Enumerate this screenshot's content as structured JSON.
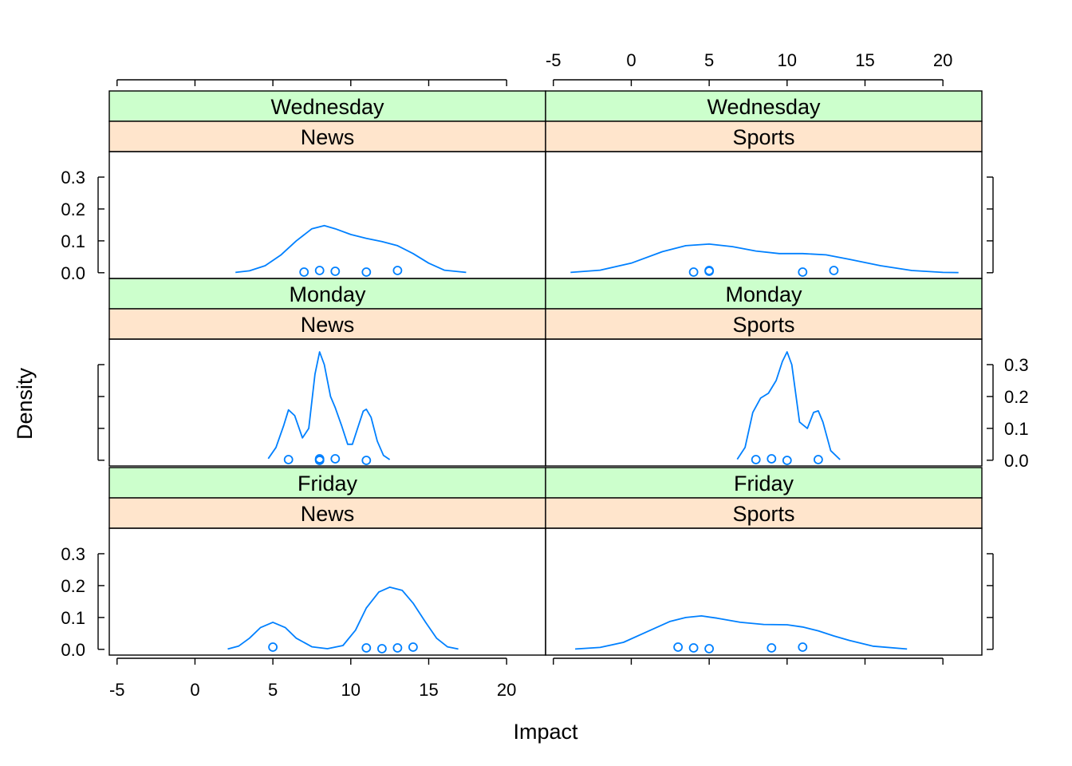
{
  "chart_data": {
    "type": "density",
    "layout": "lattice 2 columns x 3 rows, top row = Wednesday, middle = Monday, bottom = Friday",
    "xlabel": "Impact",
    "ylabel": "Density",
    "x_ticks": [
      -5,
      0,
      5,
      10,
      15,
      20
    ],
    "y_ticks": [
      0.0,
      0.1,
      0.2,
      0.3
    ],
    "y_tick_labels": [
      "0.0",
      "0.1",
      "0.2",
      "0.3"
    ],
    "xlim": [
      -5.5,
      22.5
    ],
    "ylim": [
      -0.018,
      0.38
    ],
    "colors": {
      "series": "#0080ff",
      "strip_outer": "#ccffcc",
      "strip_inner": "#ffe5cc",
      "frame": "#000000"
    },
    "panels": [
      {
        "row": 0,
        "col": 0,
        "strips": [
          "Wednesday",
          "News"
        ],
        "points": [
          7,
          8,
          9,
          11,
          13
        ],
        "curve_x": [
          2.6,
          3.5,
          4.5,
          5.5,
          6.5,
          7.5,
          8.3,
          9.0,
          10.0,
          11.0,
          12.0,
          13.0,
          14.0,
          15.0,
          16.0,
          17.4
        ],
        "curve_y": [
          0.001,
          0.006,
          0.022,
          0.055,
          0.1,
          0.138,
          0.148,
          0.138,
          0.12,
          0.108,
          0.098,
          0.085,
          0.06,
          0.03,
          0.008,
          0.001
        ]
      },
      {
        "row": 0,
        "col": 1,
        "strips": [
          "Wednesday",
          "Sports"
        ],
        "points": [
          4,
          5,
          5,
          11,
          13
        ],
        "curve_x": [
          -3.9,
          -2.0,
          0.0,
          2.0,
          3.5,
          5.0,
          6.5,
          8.0,
          9.5,
          11.0,
          12.5,
          14.0,
          16.0,
          18.0,
          20.0,
          21.0
        ],
        "curve_y": [
          0.001,
          0.008,
          0.03,
          0.066,
          0.085,
          0.09,
          0.082,
          0.068,
          0.06,
          0.06,
          0.056,
          0.042,
          0.022,
          0.007,
          0.001,
          0.0005
        ]
      },
      {
        "row": 1,
        "col": 0,
        "strips": [
          "Monday",
          "News"
        ],
        "points": [
          6,
          8,
          8,
          8,
          9,
          11
        ],
        "curve_x": [
          4.7,
          5.2,
          5.7,
          6.0,
          6.4,
          6.9,
          7.3,
          7.7,
          8.0,
          8.3,
          8.7,
          9.0,
          9.4,
          9.8,
          10.1,
          10.5,
          10.8,
          11.0,
          11.3,
          11.7,
          12.1,
          12.5
        ],
        "curve_y": [
          0.005,
          0.04,
          0.11,
          0.158,
          0.14,
          0.07,
          0.1,
          0.27,
          0.34,
          0.3,
          0.2,
          0.165,
          0.11,
          0.05,
          0.05,
          0.11,
          0.154,
          0.16,
          0.135,
          0.06,
          0.015,
          0.002
        ]
      },
      {
        "row": 1,
        "col": 1,
        "strips": [
          "Monday",
          "Sports"
        ],
        "points": [
          8,
          9,
          10,
          12
        ],
        "curve_x": [
          6.8,
          7.3,
          7.8,
          8.3,
          8.8,
          9.3,
          9.7,
          10.0,
          10.3,
          10.8,
          11.3,
          11.7,
          12.0,
          12.3,
          12.8,
          13.4
        ],
        "curve_y": [
          0.003,
          0.04,
          0.15,
          0.195,
          0.21,
          0.25,
          0.31,
          0.34,
          0.3,
          0.12,
          0.1,
          0.15,
          0.155,
          0.12,
          0.03,
          0.002
        ]
      },
      {
        "row": 2,
        "col": 0,
        "strips": [
          "Friday",
          "News"
        ],
        "points": [
          5,
          11,
          12,
          13,
          14
        ],
        "curve_x": [
          2.1,
          2.8,
          3.5,
          4.2,
          5.0,
          5.8,
          6.5,
          7.5,
          8.5,
          9.5,
          10.3,
          11.0,
          11.8,
          12.5,
          13.3,
          14.0,
          14.8,
          15.5,
          16.2,
          16.9
        ],
        "curve_y": [
          0.001,
          0.01,
          0.035,
          0.068,
          0.085,
          0.068,
          0.035,
          0.008,
          0.002,
          0.012,
          0.06,
          0.13,
          0.18,
          0.195,
          0.185,
          0.145,
          0.085,
          0.035,
          0.008,
          0.001
        ]
      },
      {
        "row": 2,
        "col": 1,
        "strips": [
          "Friday",
          "Sports"
        ],
        "points": [
          3,
          4,
          5,
          9,
          11
        ],
        "curve_x": [
          -3.6,
          -2.0,
          -0.5,
          1.0,
          2.5,
          3.5,
          4.5,
          5.5,
          7.0,
          8.5,
          10.0,
          11.0,
          12.0,
          13.0,
          14.0,
          15.5,
          17.7
        ],
        "curve_y": [
          0.001,
          0.006,
          0.022,
          0.055,
          0.088,
          0.1,
          0.105,
          0.098,
          0.085,
          0.078,
          0.077,
          0.07,
          0.058,
          0.042,
          0.028,
          0.01,
          0.001
        ]
      }
    ]
  }
}
